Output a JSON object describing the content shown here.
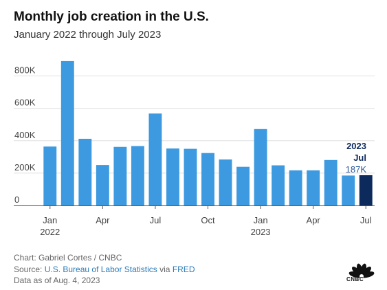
{
  "header": {
    "title": "Monthly job creation in the U.S.",
    "subtitle": "January 2022 through July 2023"
  },
  "chart_data": {
    "type": "bar",
    "title": "Monthly job creation in the U.S.",
    "subtitle": "January 2022 through July 2023",
    "xlabel": "",
    "ylabel": "",
    "categories": [
      "Jan 2022",
      "Feb 2022",
      "Mar 2022",
      "Apr 2022",
      "May 2022",
      "Jun 2022",
      "Jul 2022",
      "Aug 2022",
      "Sep 2022",
      "Oct 2022",
      "Nov 2022",
      "Dec 2022",
      "Jan 2023",
      "Feb 2023",
      "Mar 2023",
      "Apr 2023",
      "May 2023",
      "Jun 2023",
      "Jul 2023"
    ],
    "values": [
      364000,
      892000,
      412000,
      250000,
      362000,
      367000,
      568000,
      352000,
      350000,
      324000,
      284000,
      239000,
      472000,
      248000,
      217000,
      217000,
      281000,
      185000,
      187000
    ],
    "ylim": [
      0,
      900000
    ],
    "yticks": [
      0,
      200000,
      400000,
      600000,
      800000
    ],
    "ytick_labels": [
      "0",
      "200K",
      "400K",
      "600K",
      "800K"
    ],
    "xtick_labels": [
      {
        "index": 0,
        "line1": "Jan",
        "line2": "2022"
      },
      {
        "index": 3,
        "line1": "Apr",
        "line2": ""
      },
      {
        "index": 6,
        "line1": "Jul",
        "line2": ""
      },
      {
        "index": 9,
        "line1": "Oct",
        "line2": ""
      },
      {
        "index": 12,
        "line1": "Jan",
        "line2": "2023"
      },
      {
        "index": 15,
        "line1": "Apr",
        "line2": ""
      },
      {
        "index": 18,
        "line1": "Jul",
        "line2": ""
      }
    ],
    "highlight": {
      "index": 18,
      "year": "2023",
      "month": "Jul",
      "value_label": "187K"
    },
    "grid": true,
    "colors": {
      "bar": "#3d9ae0",
      "highlight": "#0d2a5c",
      "highlight_text": "#0d2a5c",
      "value_label": "#2a5a9e",
      "grid": "#e0e0e0",
      "axis_text": "#444444"
    }
  },
  "footer": {
    "credit": "Chart: Gabriel Cortes / CNBC",
    "source_prefix": "Source: ",
    "source_link1": "U.S. Bureau of Labor Statistics",
    "source_via": " via ",
    "source_link2": "FRED",
    "date": "Data as of Aug. 4, 2023"
  },
  "logo": {
    "name": "cnbc-peacock-icon",
    "text": "CNBC"
  }
}
